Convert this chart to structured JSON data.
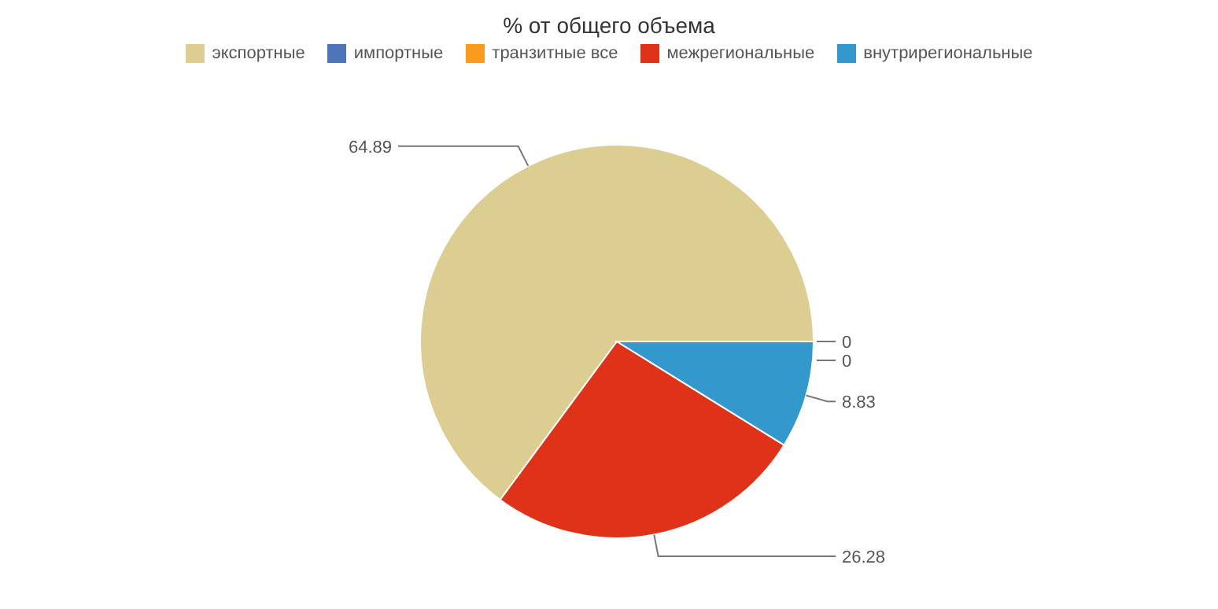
{
  "chart_data": {
    "type": "pie",
    "title": "% от общего объема",
    "categories": [
      "экспортные",
      "импортные",
      "транзитные все",
      "межрегиональные",
      "внутрирегиональные"
    ],
    "values": [
      64.89,
      0,
      0,
      26.28,
      8.83
    ],
    "value_labels": [
      "64.89",
      "0",
      "0",
      "26.28",
      "8.83"
    ],
    "colors": [
      "#dccd91",
      "#4f74b8",
      "#f99a1c",
      "#e03219",
      "#3399cc"
    ],
    "legend": "top"
  }
}
